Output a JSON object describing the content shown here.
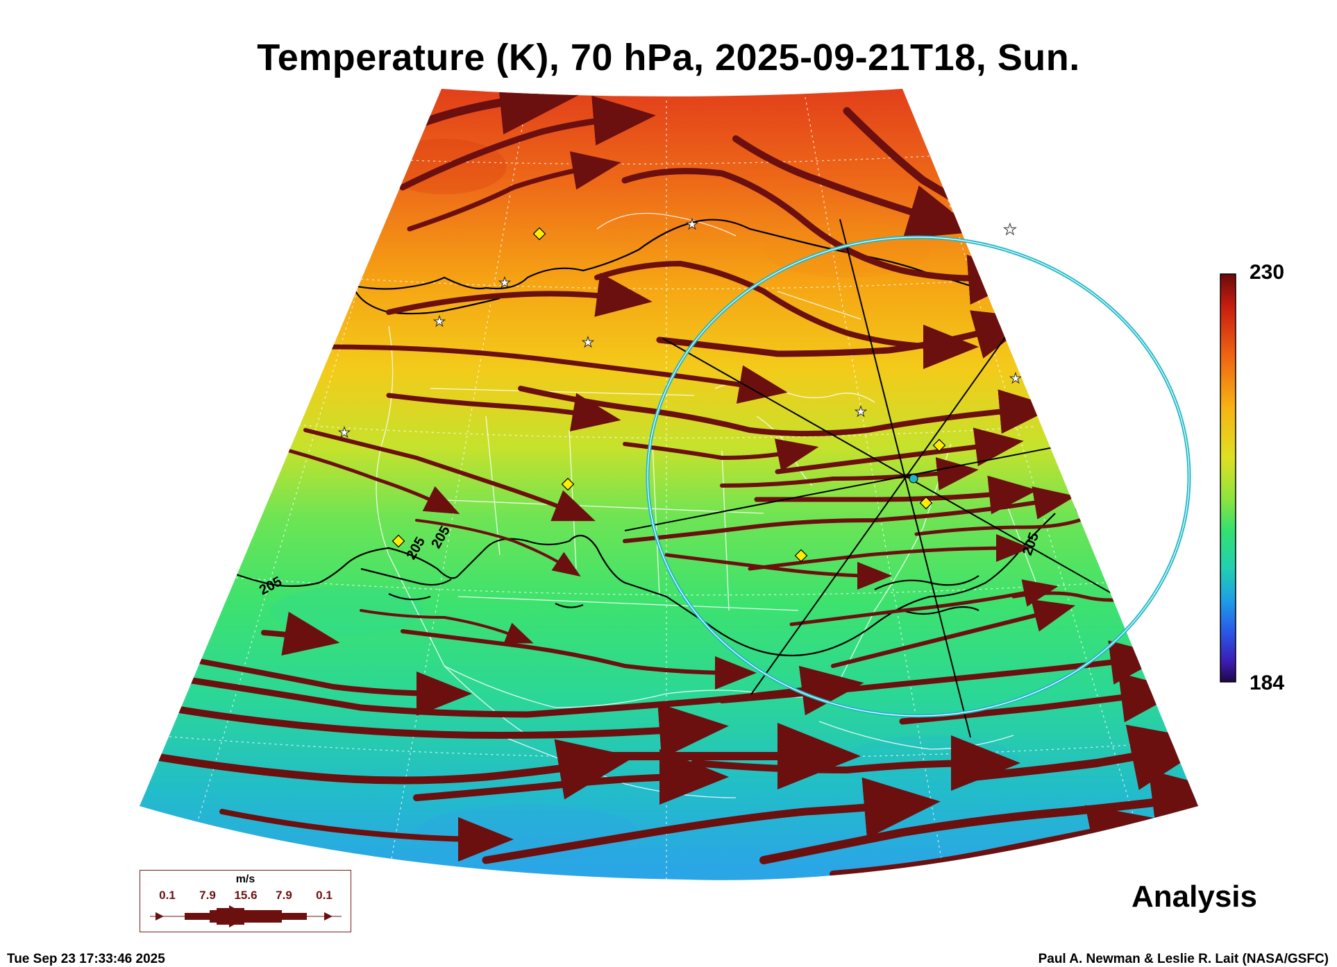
{
  "title": "Temperature (K), 70 hPa, 2025-09-21T18, Sun.",
  "colorbar": {
    "max": "230",
    "min": "184",
    "colormap": "rainbow"
  },
  "contour_labels": [
    "205",
    "205",
    "205",
    "205"
  ],
  "analysis_label": "Analysis",
  "timestamp": "Tue Sep 23 17:33:46 2025",
  "credit": "Paul A. Newman & Leslie R. Lait (NASA/GSFC)",
  "legend": {
    "unit": "m/s",
    "values": [
      "0.1",
      "7.9",
      "15.6",
      "7.9",
      "0.1"
    ]
  },
  "colors": {
    "streamline": "#6b0f0f",
    "sun_circle": "#1fb8c8",
    "marker_diamond": "#ffee00",
    "marker_star": "#ffffff",
    "warm": "#e8451c",
    "cool": "#2fa8e8"
  }
}
